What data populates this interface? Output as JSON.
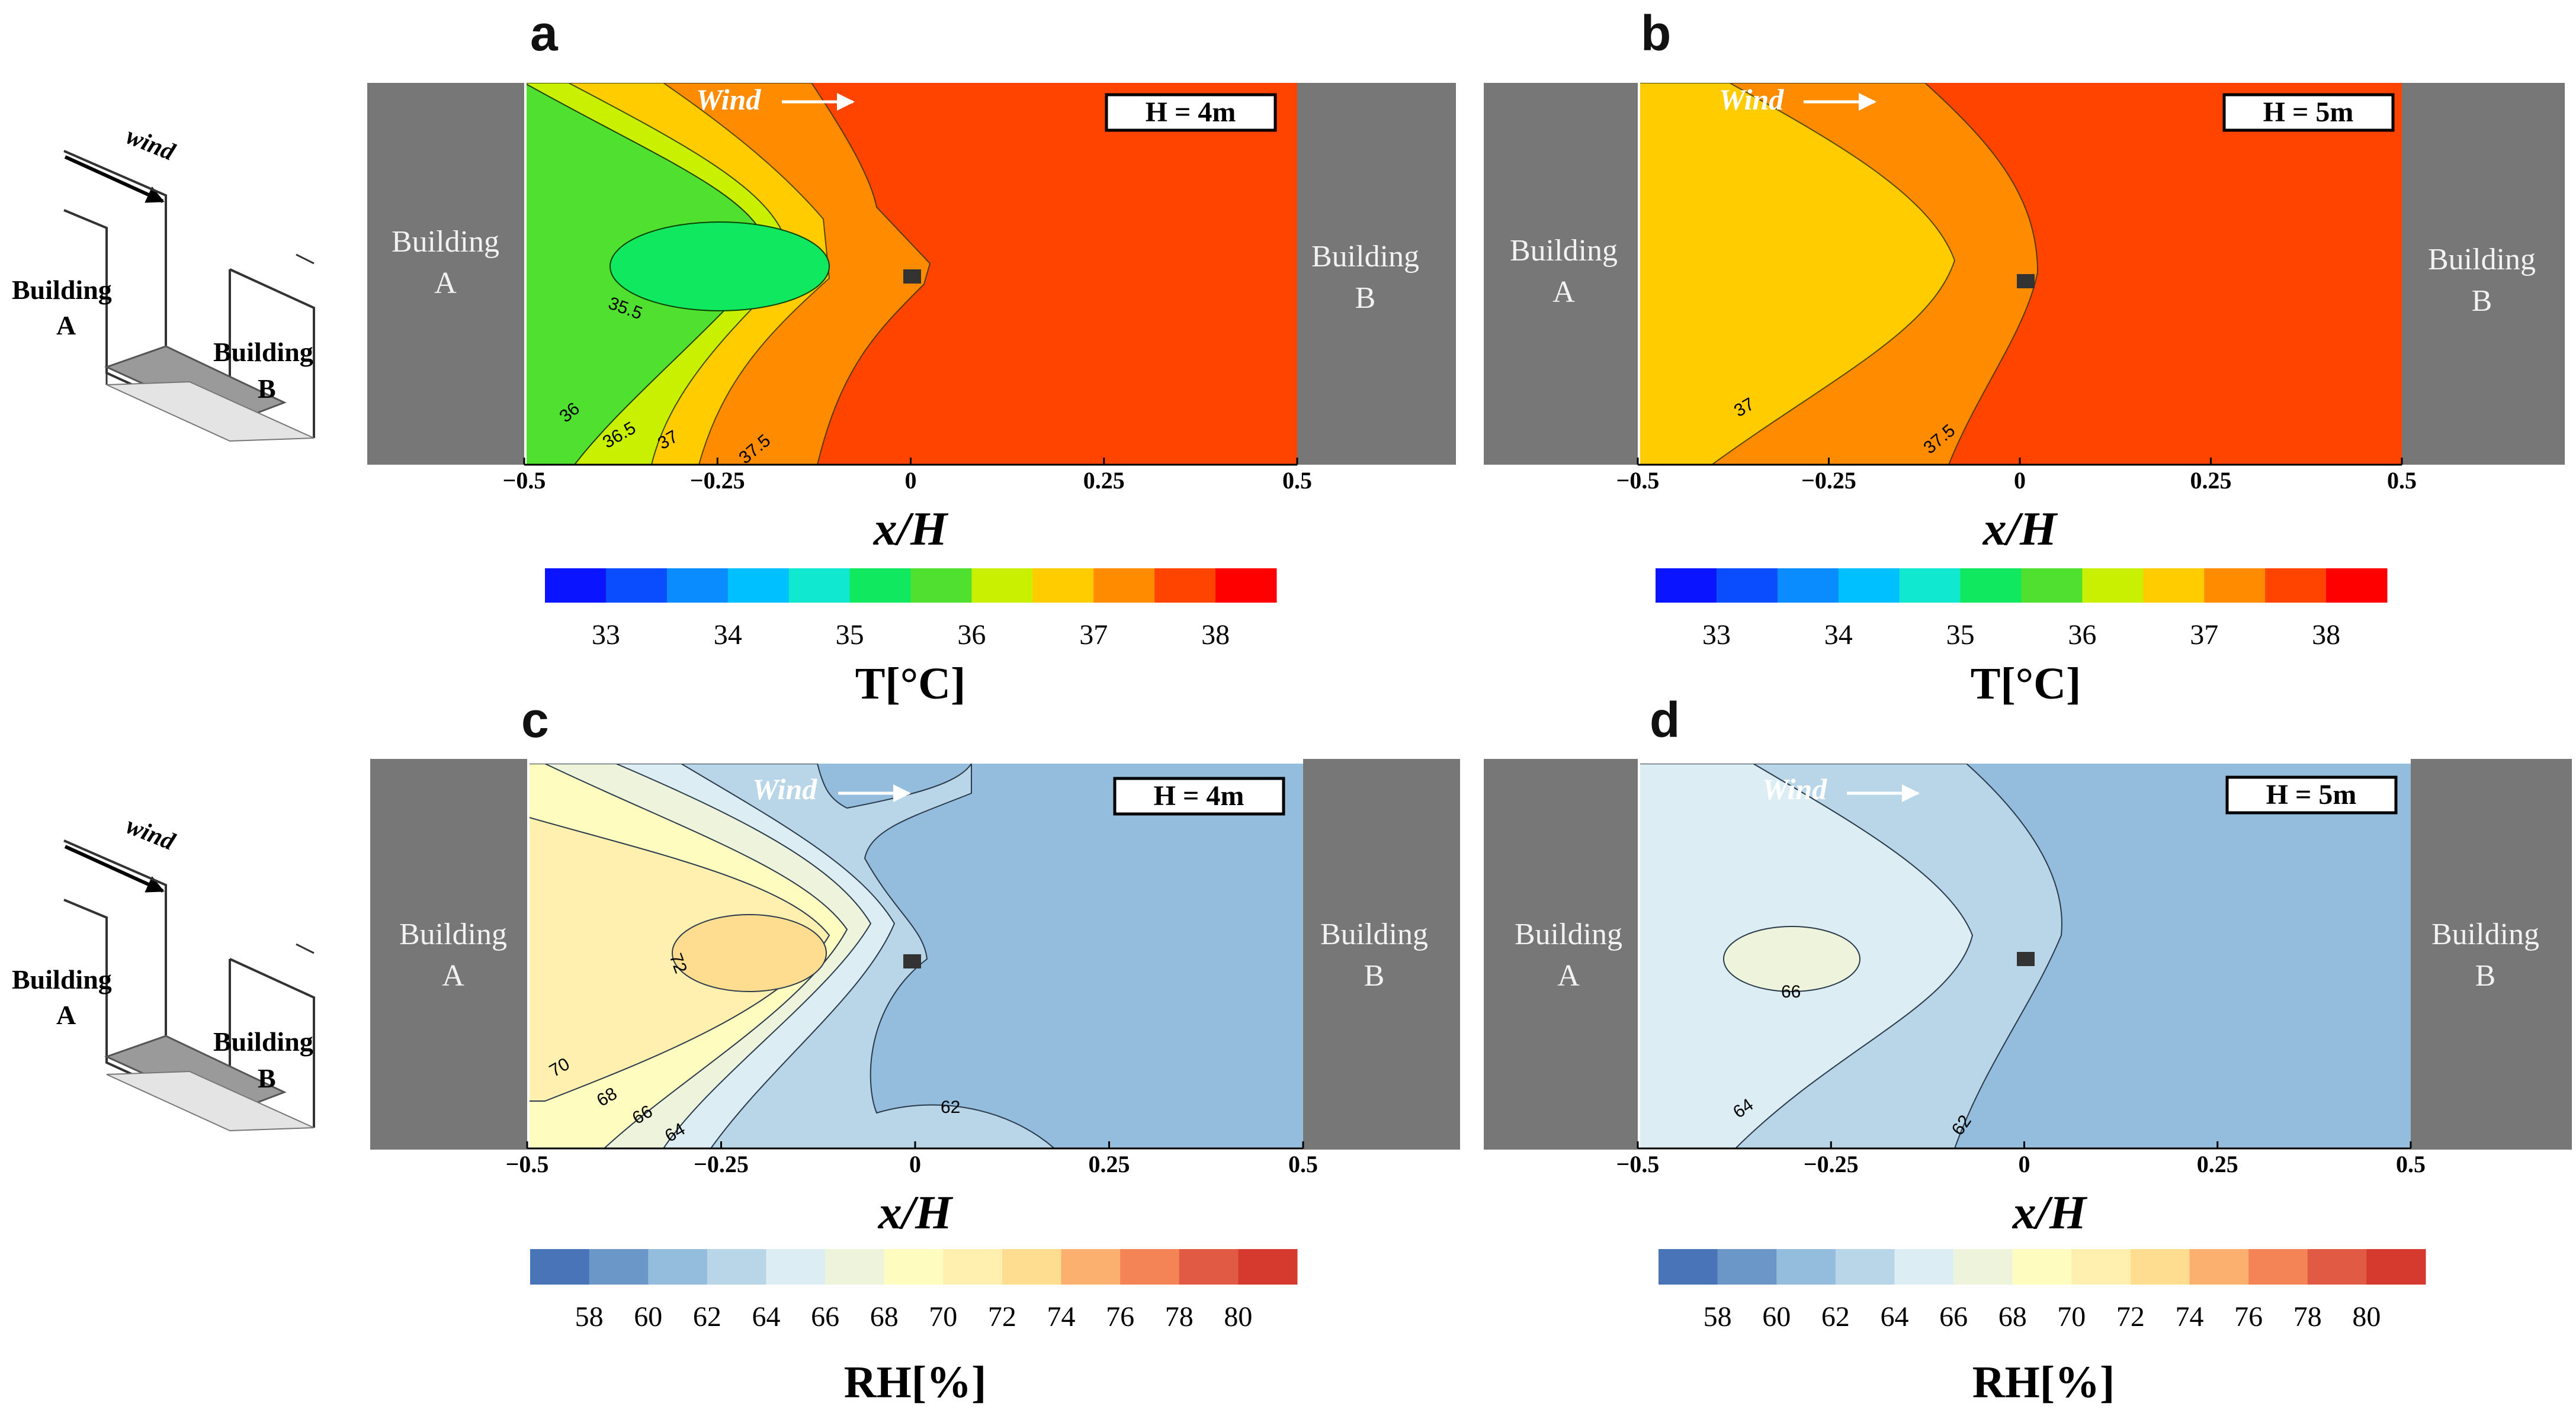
{
  "chart_data": [
    {
      "type": "heatmap",
      "panel": "a",
      "variable": "T[°C]",
      "case": "H = 4m",
      "xlabel": "x/H",
      "x_ticks": [
        "-0.5",
        "-0.25",
        "0",
        "0.25",
        "0.5"
      ],
      "xlim": [
        -0.5,
        0.5
      ],
      "contour_labels": [
        "35.5",
        "36",
        "36.5",
        "37",
        "37.5"
      ],
      "colorbar_ticks": [
        "33",
        "34",
        "35",
        "36",
        "37",
        "38"
      ],
      "building_left": [
        "Building",
        "A"
      ],
      "building_right": [
        "Building",
        "B"
      ],
      "wind_label": "Wind"
    },
    {
      "type": "heatmap",
      "panel": "b",
      "variable": "T[°C]",
      "case": "H = 5m",
      "xlabel": "x/H",
      "x_ticks": [
        "-0.5",
        "-0.25",
        "0",
        "0.25",
        "0.5"
      ],
      "xlim": [
        -0.5,
        0.5
      ],
      "contour_labels": [
        "37",
        "37.5"
      ],
      "colorbar_ticks": [
        "33",
        "34",
        "35",
        "36",
        "37",
        "38"
      ],
      "building_left": [
        "Building",
        "A"
      ],
      "building_right": [
        "Building",
        "B"
      ],
      "wind_label": "Wind"
    },
    {
      "type": "heatmap",
      "panel": "c",
      "variable": "RH[%]",
      "case": "H = 4m",
      "xlabel": "x/H",
      "x_ticks": [
        "-0.5",
        "-0.25",
        "0",
        "0.25",
        "0.5"
      ],
      "xlim": [
        -0.5,
        0.5
      ],
      "contour_labels": [
        "72",
        "70",
        "68",
        "66",
        "64",
        "62"
      ],
      "colorbar_ticks": [
        "58",
        "60",
        "62",
        "64",
        "66",
        "68",
        "70",
        "72",
        "74",
        "76",
        "78",
        "80"
      ],
      "building_left": [
        "Building",
        "A"
      ],
      "building_right": [
        "Building",
        "B"
      ],
      "wind_label": "Wind"
    },
    {
      "type": "heatmap",
      "panel": "d",
      "variable": "RH[%]",
      "case": "H = 5m",
      "xlabel": "x/H",
      "x_ticks": [
        "-0.5",
        "-0.25",
        "0",
        "0.25",
        "0.5"
      ],
      "xlim": [
        -0.5,
        0.5
      ],
      "contour_labels": [
        "66",
        "64",
        "62"
      ],
      "colorbar_ticks": [
        "58",
        "60",
        "62",
        "64",
        "66",
        "68",
        "70",
        "72",
        "74",
        "76",
        "78",
        "80"
      ],
      "building_left": [
        "Building",
        "A"
      ],
      "building_right": [
        "Building",
        "B"
      ],
      "wind_label": "Wind"
    }
  ],
  "sketch": {
    "wind": "wind",
    "building_a": [
      "Building",
      "A"
    ],
    "building_b": [
      "Building",
      "B"
    ]
  },
  "colors": {
    "temp_scale": [
      "#0a14ff",
      "#0a4cff",
      "#0a8cff",
      "#00c0ff",
      "#10e8d0",
      "#10e860",
      "#50e030",
      "#c8f000",
      "#ffcc00",
      "#ff8c00",
      "#ff4400",
      "#ff0000"
    ],
    "rh_scale": [
      "#4a74b8",
      "#6a96c8",
      "#94bcdc",
      "#b8d6e8",
      "#dcedf4",
      "#eef4dc",
      "#fffcc0",
      "#fff0b0",
      "#fedc90",
      "#fcb070",
      "#f48456",
      "#e05a44",
      "#d63a2e"
    ],
    "building": "#777777"
  }
}
